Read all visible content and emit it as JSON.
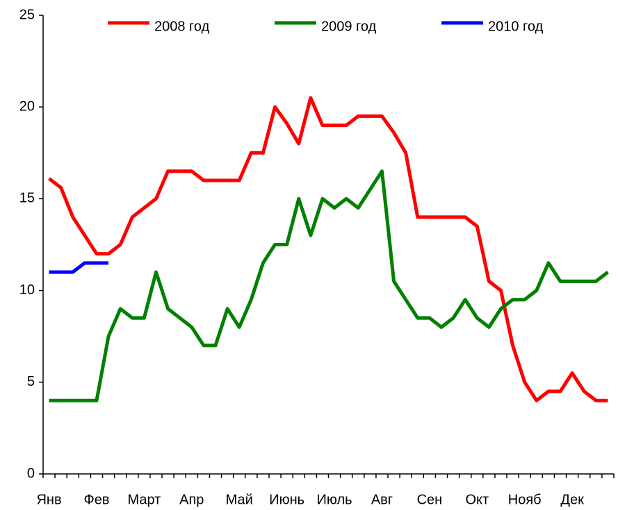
{
  "chart_data": {
    "type": "line",
    "categories": [
      "Янв",
      null,
      null,
      null,
      "Фев",
      null,
      null,
      null,
      "Март",
      null,
      null,
      null,
      "Апр",
      null,
      null,
      null,
      "Май",
      null,
      null,
      null,
      "Июнь",
      null,
      null,
      null,
      "Июль",
      null,
      null,
      null,
      "Авг",
      null,
      null,
      null,
      "Сен",
      null,
      null,
      null,
      "Окт",
      null,
      null,
      null,
      "Нояб",
      null,
      null,
      null,
      "Дек",
      null,
      null,
      null
    ],
    "series": [
      {
        "name": "2008 год",
        "color": "#ff0000",
        "values": [
          16.1,
          15.6,
          14,
          13,
          12,
          12,
          12.5,
          14,
          14.5,
          15,
          16.5,
          16.5,
          16.5,
          16,
          16,
          16,
          16,
          17.5,
          17.5,
          20,
          19.1,
          18,
          20.5,
          19,
          19,
          19,
          19.5,
          19.5,
          19.5,
          18.6,
          17.5,
          14,
          14,
          14,
          14,
          14,
          13.5,
          10.5,
          10,
          7,
          5,
          4,
          4.5,
          4.5,
          5.5,
          4.5,
          4,
          4
        ]
      },
      {
        "name": "2009 год",
        "color": "#008000",
        "values": [
          4,
          4,
          4,
          4,
          4,
          7.5,
          9,
          8.5,
          8.5,
          11,
          9,
          8.5,
          8,
          7,
          7,
          9,
          8,
          9.5,
          11.5,
          12.5,
          12.5,
          15,
          13,
          15,
          14.5,
          15,
          14.5,
          15.5,
          16.5,
          10.5,
          9.5,
          8.5,
          8.5,
          8,
          8.5,
          9.5,
          8.5,
          8,
          9,
          9.5,
          9.5,
          10,
          11.5,
          10.5,
          10.5,
          10.5,
          10.5,
          11
        ]
      },
      {
        "name": "2010 год",
        "color": "#0000ff",
        "values": [
          11,
          11,
          11,
          11.5,
          11.5,
          11.5,
          null,
          null,
          null,
          null,
          null,
          null,
          null,
          null,
          null,
          null,
          null,
          null,
          null,
          null,
          null,
          null,
          null,
          null,
          null,
          null,
          null,
          null,
          null,
          null,
          null,
          null,
          null,
          null,
          null,
          null,
          null,
          null,
          null,
          null,
          null,
          null,
          null,
          null,
          null,
          null,
          null,
          null
        ]
      }
    ],
    "ylim": [
      0,
      25
    ],
    "yticks": [
      0,
      5,
      10,
      15,
      20,
      25
    ],
    "legend": "top"
  }
}
